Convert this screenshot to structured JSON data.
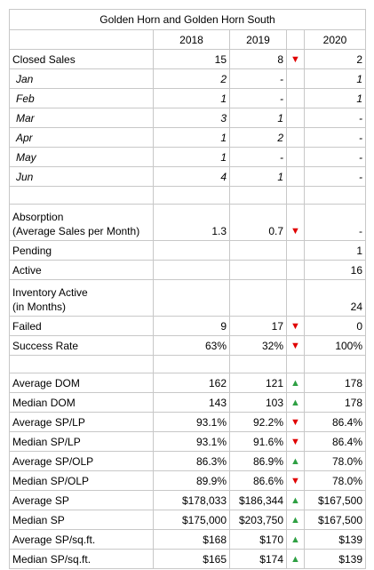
{
  "title": "Golden Horn and Golden Horn South",
  "columns": [
    "2018",
    "2019",
    "2020"
  ],
  "rows": [
    {
      "label": "Closed Sales",
      "v2018": "15",
      "v2019": "8",
      "arrow": "down",
      "v2020": "2"
    },
    {
      "label": "Jan",
      "v2018": "2",
      "v2019": "-",
      "arrow": "",
      "v2020": "1",
      "italic": true
    },
    {
      "label": "Feb",
      "v2018": "1",
      "v2019": "-",
      "arrow": "",
      "v2020": "1",
      "italic": true
    },
    {
      "label": "Mar",
      "v2018": "3",
      "v2019": "1",
      "arrow": "",
      "v2020": "-",
      "italic": true
    },
    {
      "label": "Apr",
      "v2018": "1",
      "v2019": "2",
      "arrow": "",
      "v2020": "-",
      "italic": true
    },
    {
      "label": "May",
      "v2018": "1",
      "v2019": "-",
      "arrow": "",
      "v2020": "-",
      "italic": true
    },
    {
      "label": "Jun",
      "v2018": "4",
      "v2019": "1",
      "arrow": "",
      "v2020": "-",
      "italic": true
    },
    {
      "gap": true
    },
    {
      "label": "Absorption",
      "label2": "(Average Sales per Month)",
      "v2018": "1.3",
      "v2019": "0.7",
      "arrow": "down",
      "v2020": "-"
    },
    {
      "label": "Pending",
      "v2018": "",
      "v2019": "",
      "arrow": "",
      "v2020": "1"
    },
    {
      "label": "Active",
      "v2018": "",
      "v2019": "",
      "arrow": "",
      "v2020": "16"
    },
    {
      "label": "Inventory Active",
      "label2": "(in Months)",
      "v2018": "",
      "v2019": "",
      "arrow": "",
      "v2020": "24"
    },
    {
      "label": "Failed",
      "v2018": "9",
      "v2019": "17",
      "arrow": "down",
      "v2020": "0"
    },
    {
      "label": "Success Rate",
      "v2018": "63%",
      "v2019": "32%",
      "arrow": "down",
      "v2020": "100%"
    },
    {
      "gap": true
    },
    {
      "label": "Average DOM",
      "v2018": "162",
      "v2019": "121",
      "arrow": "up",
      "v2020": "178"
    },
    {
      "label": "Median DOM",
      "v2018": "143",
      "v2019": "103",
      "arrow": "up",
      "v2020": "178"
    },
    {
      "label": "Average SP/LP",
      "v2018": "93.1%",
      "v2019": "92.2%",
      "arrow": "down",
      "v2020": "86.4%"
    },
    {
      "label": "Median SP/LP",
      "v2018": "93.1%",
      "v2019": "91.6%",
      "arrow": "down",
      "v2020": "86.4%"
    },
    {
      "label": "Average SP/OLP",
      "v2018": "86.3%",
      "v2019": "86.9%",
      "arrow": "up",
      "v2020": "78.0%"
    },
    {
      "label": "Median SP/OLP",
      "v2018": "89.9%",
      "v2019": "86.6%",
      "arrow": "down",
      "v2020": "78.0%"
    },
    {
      "label": "Average SP",
      "v2018": "$178,033",
      "v2019": "$186,344",
      "arrow": "up",
      "v2020": "$167,500"
    },
    {
      "label": "Median SP",
      "v2018": "$175,000",
      "v2019": "$203,750",
      "arrow": "up",
      "v2020": "$167,500"
    },
    {
      "label": "Average SP/sq.ft.",
      "v2018": "$168",
      "v2019": "$170",
      "arrow": "up",
      "v2020": "$139"
    },
    {
      "label": "Median SP/sq.ft.",
      "v2018": "$165",
      "v2019": "$174",
      "arrow": "up",
      "v2020": "$139"
    }
  ]
}
